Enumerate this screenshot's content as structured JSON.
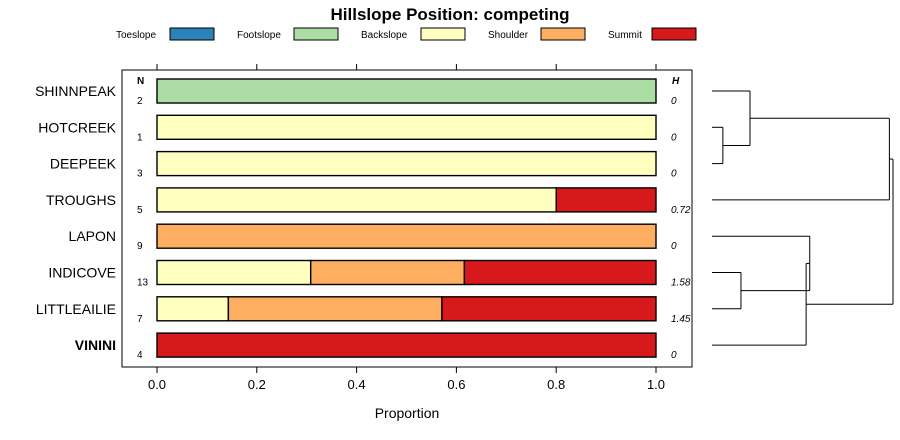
{
  "chart_data": {
    "type": "bar",
    "orientation": "horizontal",
    "stacked": true,
    "title": "Hillslope Position: competing",
    "xlabel": "Proportion",
    "xlim": [
      0,
      1
    ],
    "xticks": [
      "0.0",
      "0.2",
      "0.4",
      "0.6",
      "0.8",
      "1.0"
    ],
    "column_headers": {
      "n": "N",
      "h": "H"
    },
    "legend": [
      {
        "name": "Toeslope",
        "color": "#2b83ba"
      },
      {
        "name": "Footslope",
        "color": "#abdda4"
      },
      {
        "name": "Backslope",
        "color": "#ffffbf"
      },
      {
        "name": "Shoulder",
        "color": "#fdae61"
      },
      {
        "name": "Summit",
        "color": "#d7191c"
      }
    ],
    "rows": [
      {
        "label": "SHINNPEAK",
        "n": "2",
        "h": "0",
        "bold": false,
        "values": [
          0,
          1,
          0,
          0,
          0
        ]
      },
      {
        "label": "HOTCREEK",
        "n": "1",
        "h": "0",
        "bold": false,
        "values": [
          0,
          0,
          1,
          0,
          0
        ]
      },
      {
        "label": "DEEPEEK",
        "n": "3",
        "h": "0",
        "bold": false,
        "values": [
          0,
          0,
          1,
          0,
          0
        ]
      },
      {
        "label": "TROUGHS",
        "n": "5",
        "h": "0.72",
        "bold": false,
        "values": [
          0,
          0,
          0.8,
          0,
          0.2
        ]
      },
      {
        "label": "LAPON",
        "n": "9",
        "h": "0",
        "bold": false,
        "values": [
          0,
          0,
          0,
          1,
          0
        ]
      },
      {
        "label": "INDICOVE",
        "n": "13",
        "h": "1.58",
        "bold": false,
        "values": [
          0,
          0,
          0.308,
          0.308,
          0.384
        ]
      },
      {
        "label": "LITTLEAILIE",
        "n": "7",
        "h": "1.45",
        "bold": false,
        "values": [
          0,
          0,
          0.143,
          0.428,
          0.429
        ]
      },
      {
        "label": "VININI",
        "n": "4",
        "h": "0",
        "bold": true,
        "values": [
          0,
          0,
          0,
          0,
          1
        ]
      }
    ],
    "dendrogram": {
      "merges": [
        {
          "a": 1,
          "b": 2,
          "height": 0.06
        },
        {
          "a": 5,
          "b": 6,
          "height": 0.16
        },
        {
          "a": "m0",
          "b": 0,
          "height": 0.21
        },
        {
          "a": "m2",
          "b": 3,
          "height": 0.98
        },
        {
          "a": "m1",
          "b": 4,
          "height": 0.54
        },
        {
          "a": "m4",
          "b": 7,
          "height": 0.52
        },
        {
          "a": "m5",
          "b": "m3",
          "height": 1.0
        }
      ]
    }
  }
}
